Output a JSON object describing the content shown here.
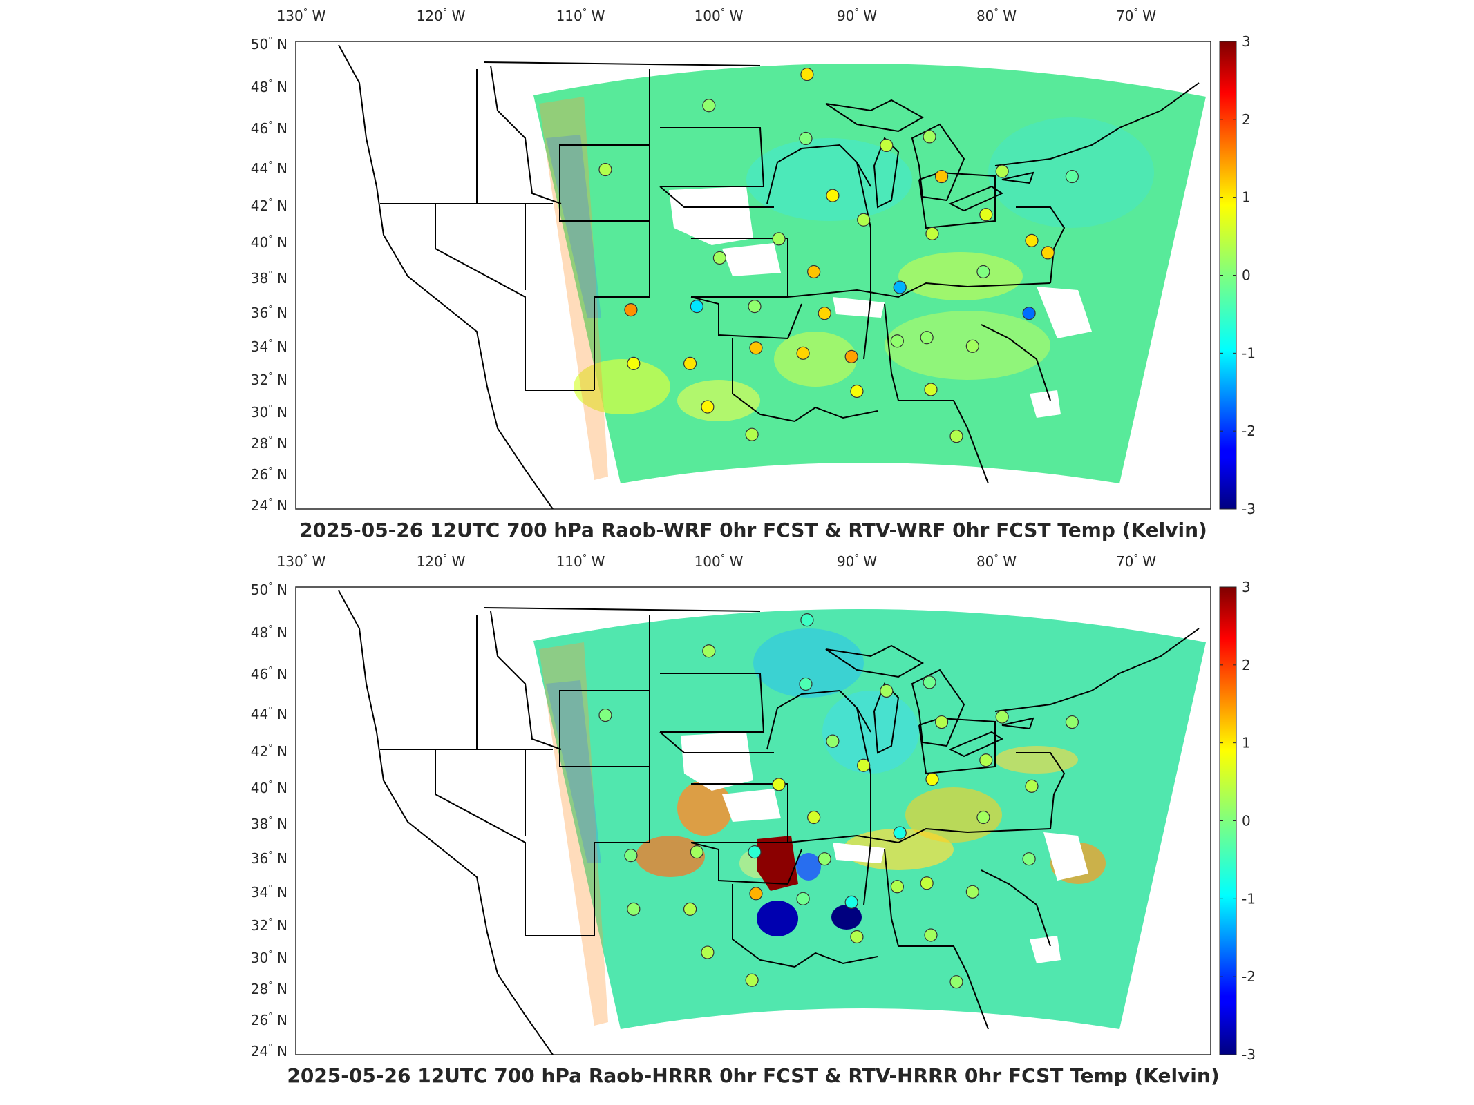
{
  "panels": [
    {
      "id": "wrf",
      "title": "2025-05-26 12UTC 700 hPa Raob-WRF 0hr FCST & RTV-WRF 0hr FCST Temp (Kelvin)",
      "lon_labels": [
        "130",
        "120",
        "110",
        "100",
        "90",
        "80",
        "70"
      ],
      "lon_suffix": "W",
      "lat_labels": [
        "50",
        "48",
        "46",
        "44",
        "42",
        "40",
        "38",
        "36",
        "34",
        "32",
        "30",
        "28",
        "26",
        "24"
      ],
      "lat_suffix": "N",
      "colorbar": {
        "ticks": [
          "3",
          "2",
          "1",
          "0",
          "-1",
          "-2",
          "-3"
        ],
        "range": [
          -3,
          3
        ]
      },
      "stations": [
        {
          "lon": -93.5,
          "lat": 48.6,
          "value": 0.9
        },
        {
          "lon": -100.8,
          "lat": 46.8,
          "value": 0.1
        },
        {
          "lon": -93.6,
          "lat": 44.9,
          "value": 0.0
        },
        {
          "lon": -87.6,
          "lat": 44.5,
          "value": 0.4
        },
        {
          "lon": -84.4,
          "lat": 45.0,
          "value": 0.2
        },
        {
          "lon": -83.5,
          "lat": 42.7,
          "value": 1.1
        },
        {
          "lon": -79.0,
          "lat": 43.0,
          "value": 0.3
        },
        {
          "lon": -73.8,
          "lat": 42.7,
          "value": -0.2
        },
        {
          "lon": -108.5,
          "lat": 43.1,
          "value": 0.3
        },
        {
          "lon": -91.6,
          "lat": 41.6,
          "value": 0.8
        },
        {
          "lon": -89.3,
          "lat": 40.2,
          "value": 0.3
        },
        {
          "lon": -80.2,
          "lat": 40.5,
          "value": 0.6
        },
        {
          "lon": -84.2,
          "lat": 39.4,
          "value": 0.4
        },
        {
          "lon": -76.8,
          "lat": 39.0,
          "value": 0.9
        },
        {
          "lon": -75.6,
          "lat": 38.3,
          "value": 1.0
        },
        {
          "lon": -95.6,
          "lat": 39.1,
          "value": 0.2
        },
        {
          "lon": -100.0,
          "lat": 38.0,
          "value": 0.2
        },
        {
          "lon": -93.0,
          "lat": 37.2,
          "value": 1.1
        },
        {
          "lon": -86.6,
          "lat": 36.3,
          "value": -1.2
        },
        {
          "lon": -80.4,
          "lat": 37.2,
          "value": 0.0
        },
        {
          "lon": -101.7,
          "lat": 35.2,
          "value": -0.9
        },
        {
          "lon": -106.6,
          "lat": 35.0,
          "value": 1.4
        },
        {
          "lon": -97.4,
          "lat": 35.2,
          "value": 0.1
        },
        {
          "lon": -92.2,
          "lat": 34.8,
          "value": 1.0
        },
        {
          "lon": -77.0,
          "lat": 34.8,
          "value": -1.6
        },
        {
          "lon": -86.8,
          "lat": 33.2,
          "value": 0.1
        },
        {
          "lon": -84.6,
          "lat": 33.4,
          "value": 0.1
        },
        {
          "lon": -97.3,
          "lat": 32.8,
          "value": 1.1
        },
        {
          "lon": -93.8,
          "lat": 32.5,
          "value": 1.0
        },
        {
          "lon": -90.2,
          "lat": 32.3,
          "value": 1.3
        },
        {
          "lon": -81.2,
          "lat": 32.9,
          "value": 0.2
        },
        {
          "lon": -106.4,
          "lat": 31.9,
          "value": 0.7
        },
        {
          "lon": -102.2,
          "lat": 31.9,
          "value": 0.9
        },
        {
          "lon": -89.8,
          "lat": 30.3,
          "value": 0.7
        },
        {
          "lon": -84.3,
          "lat": 30.4,
          "value": 0.5
        },
        {
          "lon": -100.9,
          "lat": 29.4,
          "value": 0.8
        },
        {
          "lon": -97.6,
          "lat": 27.8,
          "value": 0.3
        },
        {
          "lon": -82.4,
          "lat": 27.7,
          "value": 0.3
        }
      ]
    },
    {
      "id": "hrrr",
      "title": "2025-05-26 12UTC 700 hPa Raob-HRRR 0hr FCST & RTV-HRRR 0hr FCST Temp (Kelvin)",
      "lon_labels": [
        "130",
        "120",
        "110",
        "100",
        "90",
        "80",
        "70"
      ],
      "lon_suffix": "W",
      "lat_labels": [
        "50",
        "48",
        "46",
        "44",
        "42",
        "40",
        "38",
        "36",
        "34",
        "32",
        "30",
        "28",
        "26",
        "24"
      ],
      "lat_suffix": "N",
      "colorbar": {
        "ticks": [
          "3",
          "2",
          "1",
          "0",
          "-1",
          "-2",
          "-3"
        ],
        "range": [
          -3,
          3
        ]
      },
      "stations": [
        {
          "lon": -93.5,
          "lat": 48.6,
          "value": -0.4
        },
        {
          "lon": -100.8,
          "lat": 46.8,
          "value": 0.2
        },
        {
          "lon": -93.6,
          "lat": 44.9,
          "value": -0.3
        },
        {
          "lon": -87.6,
          "lat": 44.5,
          "value": 0.2
        },
        {
          "lon": -84.4,
          "lat": 45.0,
          "value": -0.1
        },
        {
          "lon": -83.5,
          "lat": 42.7,
          "value": 0.3
        },
        {
          "lon": -79.0,
          "lat": 43.0,
          "value": 0.2
        },
        {
          "lon": -73.8,
          "lat": 42.7,
          "value": 0.1
        },
        {
          "lon": -108.5,
          "lat": 43.1,
          "value": 0.0
        },
        {
          "lon": -91.6,
          "lat": 41.6,
          "value": 0.1
        },
        {
          "lon": -89.3,
          "lat": 40.2,
          "value": 0.5
        },
        {
          "lon": -80.2,
          "lat": 40.5,
          "value": 0.3
        },
        {
          "lon": -84.2,
          "lat": 39.4,
          "value": 0.7
        },
        {
          "lon": -76.8,
          "lat": 39.0,
          "value": 0.3
        },
        {
          "lon": -95.6,
          "lat": 39.1,
          "value": 0.6
        },
        {
          "lon": -93.0,
          "lat": 37.2,
          "value": 0.5
        },
        {
          "lon": -86.6,
          "lat": 36.3,
          "value": -0.6
        },
        {
          "lon": -80.4,
          "lat": 37.2,
          "value": 0.2
        },
        {
          "lon": -101.7,
          "lat": 35.2,
          "value": 0.2
        },
        {
          "lon": -106.6,
          "lat": 35.0,
          "value": 0.0
        },
        {
          "lon": -97.4,
          "lat": 35.2,
          "value": -0.5
        },
        {
          "lon": -92.2,
          "lat": 34.8,
          "value": 0.1
        },
        {
          "lon": -77.0,
          "lat": 34.8,
          "value": 0.0
        },
        {
          "lon": -86.8,
          "lat": 33.2,
          "value": 0.3
        },
        {
          "lon": -84.6,
          "lat": 33.4,
          "value": 0.4
        },
        {
          "lon": -97.3,
          "lat": 32.8,
          "value": 1.2
        },
        {
          "lon": -93.8,
          "lat": 32.5,
          "value": -0.1
        },
        {
          "lon": -90.2,
          "lat": 32.3,
          "value": -0.6
        },
        {
          "lon": -81.2,
          "lat": 32.9,
          "value": 0.2
        },
        {
          "lon": -106.4,
          "lat": 31.9,
          "value": 0.1
        },
        {
          "lon": -102.2,
          "lat": 31.9,
          "value": 0.3
        },
        {
          "lon": -89.8,
          "lat": 30.3,
          "value": 0.3
        },
        {
          "lon": -84.3,
          "lat": 30.4,
          "value": 0.2
        },
        {
          "lon": -100.9,
          "lat": 29.4,
          "value": 0.3
        },
        {
          "lon": -97.6,
          "lat": 27.8,
          "value": 0.3
        },
        {
          "lon": -82.4,
          "lat": 27.7,
          "value": 0.1
        }
      ]
    }
  ],
  "colormap": "jet",
  "background_color": "#7fff7f",
  "map_features": [
    "us-state-borders",
    "coastlines",
    "great-lakes"
  ]
}
